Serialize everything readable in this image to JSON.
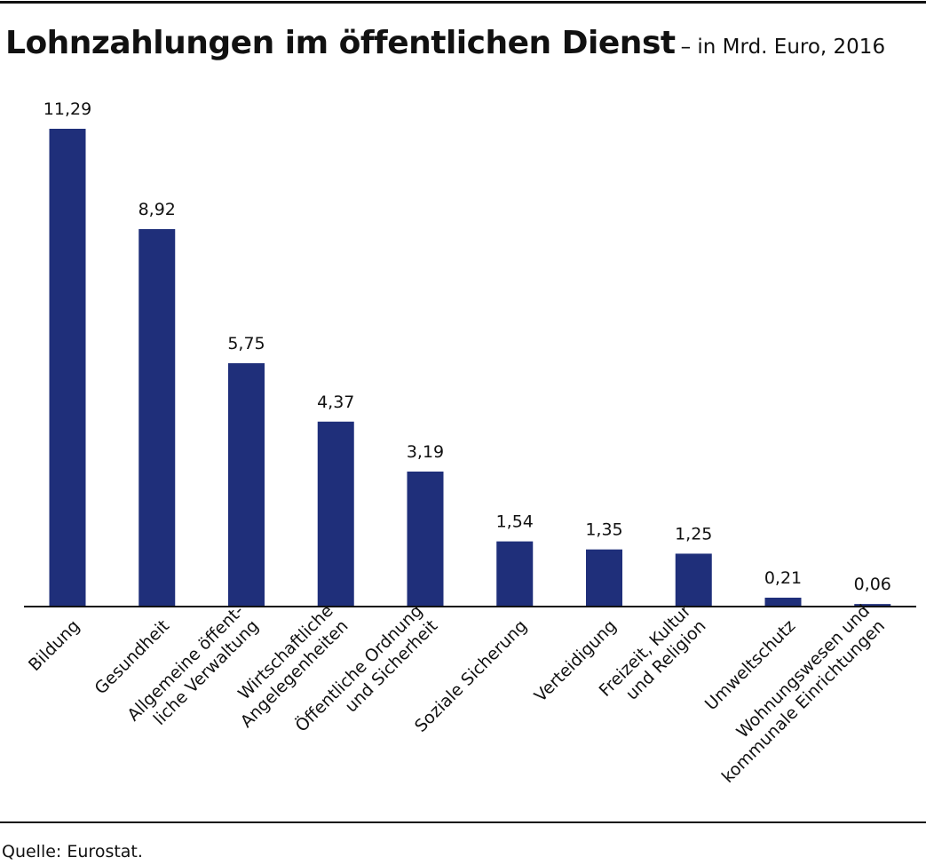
{
  "title": "Lohnzahlungen im öffentlichen Dienst",
  "subtitle": "– in Mrd. Euro, 2016",
  "source": "Quelle: Eurostat.",
  "colors": {
    "bar": "#1f2f7a",
    "axis": "#111111"
  },
  "chart_data": {
    "type": "bar",
    "title": "Lohnzahlungen im öffentlichen Dienst",
    "subtitle": "– in Mrd. Euro, 2016",
    "categories": [
      [
        "Bildung"
      ],
      [
        "Gesundheit"
      ],
      [
        "Allgemeine öffent-",
        "liche Verwaltung"
      ],
      [
        "Wirtschaftliche",
        "Angelegenheiten"
      ],
      [
        "Öffentliche Ordnung",
        "und Sicherheit"
      ],
      [
        "Soziale Sicherung"
      ],
      [
        "Verteidigung"
      ],
      [
        "Freizeit, Kultur",
        "und Religion"
      ],
      [
        "Umweltschutz"
      ],
      [
        "Wohnungswesen und",
        "kommunale Einrichtungen"
      ]
    ],
    "values": [
      11.29,
      8.92,
      5.75,
      4.37,
      3.19,
      1.54,
      1.35,
      1.25,
      0.21,
      0.06
    ],
    "value_labels": [
      "11,29",
      "8,92",
      "5,75",
      "4,37",
      "3,19",
      "1,54",
      "1,35",
      "1,25",
      "0,21",
      "0,06"
    ],
    "ylim": [
      0,
      11.29
    ],
    "grid": false,
    "legend": "none",
    "xlabel": "",
    "ylabel": ""
  }
}
